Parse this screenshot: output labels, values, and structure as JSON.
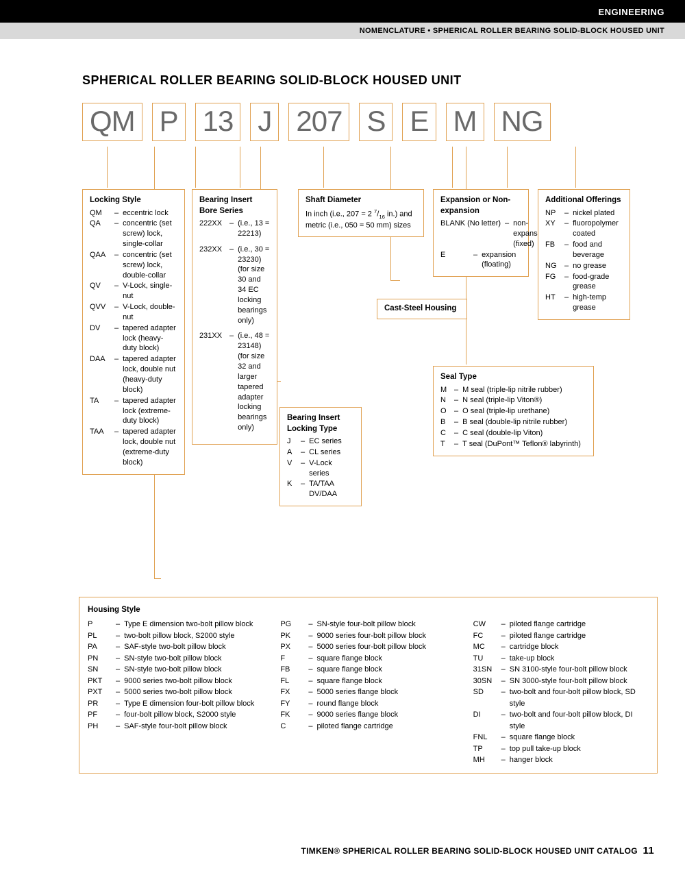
{
  "header": {
    "category": "ENGINEERING",
    "breadcrumb": "NOMENCLATURE • SPHERICAL ROLLER BEARING SOLID-BLOCK HOUSED UNIT"
  },
  "title": "SPHERICAL ROLLER BEARING SOLID-BLOCK HOUSED UNIT",
  "code_parts": [
    "QM",
    "P",
    "13",
    "J",
    "207",
    "S",
    "E",
    "M",
    "NG"
  ],
  "colors": {
    "accent": "#e0a050",
    "code_text": "#6a6a6a"
  },
  "boxes": {
    "locking_style": {
      "heading": "Locking Style",
      "items": [
        {
          "c": "QM",
          "d": "eccentric lock"
        },
        {
          "c": "QA",
          "d": "concentric (set screw) lock, single-collar"
        },
        {
          "c": "QAA",
          "d": "concentric (set screw) lock, double-collar"
        },
        {
          "c": "QV",
          "d": "V-Lock, single-nut"
        },
        {
          "c": "QVV",
          "d": "V-Lock, double-nut"
        },
        {
          "c": "DV",
          "d": "tapered adapter lock (heavy-duty block)"
        },
        {
          "c": "DAA",
          "d": "tapered adapter lock, double nut (heavy-duty block)"
        },
        {
          "c": "TA",
          "d": "tapered adapter lock (extreme-duty block)"
        },
        {
          "c": "TAA",
          "d": "tapered adapter lock, double nut (extreme-duty block)"
        }
      ]
    },
    "bore_series": {
      "heading": "Bearing Insert Bore Series",
      "items": [
        {
          "c": "222XX",
          "d": "(i.e., 13 = 22213)"
        },
        {
          "c": "232XX",
          "d": "(i.e., 30 = 23230) (for size 30 and 34 EC locking bearings only)"
        },
        {
          "c": "231XX",
          "d": "(i.e., 48 = 23148) (for size 32 and larger tapered adapter locking bearings only)"
        }
      ]
    },
    "locking_type": {
      "heading": "Bearing Insert Locking Type",
      "items": [
        {
          "c": "J",
          "d": "EC series"
        },
        {
          "c": "A",
          "d": "CL series"
        },
        {
          "c": "V",
          "d": "V-Lock series"
        },
        {
          "c": "K",
          "d": "TA/TAA DV/DAA"
        }
      ]
    },
    "shaft_diameter": {
      "heading": "Shaft Diameter",
      "text": "In inch (i.e., 207 = 2 7/16 in.) and metric (i.e., 050 = 50 mm) sizes"
    },
    "cast_steel": {
      "heading": "Cast-Steel Housing"
    },
    "expansion": {
      "heading": "Expansion or Non-expansion",
      "items": [
        {
          "c": "BLANK (No letter)",
          "d": "non-expansion (fixed)"
        },
        {
          "c": "E",
          "d": "expansion (floating)"
        }
      ]
    },
    "seal_type": {
      "heading": "Seal Type",
      "items": [
        {
          "c": "M",
          "d": "M seal (triple-lip nitrile rubber)"
        },
        {
          "c": "N",
          "d": "N seal (triple-lip Viton®)"
        },
        {
          "c": "O",
          "d": "O seal (triple-lip urethane)"
        },
        {
          "c": "B",
          "d": "B seal (double-lip nitrile rubber)"
        },
        {
          "c": "C",
          "d": "C seal (double-lip Viton)"
        },
        {
          "c": "T",
          "d": "T seal (DuPont™ Teflon® labyrinth)"
        }
      ]
    },
    "additional": {
      "heading": "Additional Offerings",
      "items": [
        {
          "c": "NP",
          "d": "nickel plated"
        },
        {
          "c": "XY",
          "d": "fluoropolymer coated"
        },
        {
          "c": "FB",
          "d": "food and beverage"
        },
        {
          "c": "NG",
          "d": "no grease"
        },
        {
          "c": "FG",
          "d": "food-grade grease"
        },
        {
          "c": "HT",
          "d": "high-temp grease"
        }
      ]
    },
    "housing_style": {
      "heading": "Housing Style",
      "col1": [
        {
          "c": "P",
          "d": "Type E dimension two-bolt pillow block"
        },
        {
          "c": "PL",
          "d": "two-bolt pillow block, S2000 style"
        },
        {
          "c": "PA",
          "d": "SAF-style two-bolt pillow block"
        },
        {
          "c": "PN",
          "d": "SN-style two-bolt pillow block"
        },
        {
          "c": "SN",
          "d": "SN-style two-bolt pillow block"
        },
        {
          "c": "PKT",
          "d": "9000 series two-bolt pillow block"
        },
        {
          "c": "PXT",
          "d": "5000 series two-bolt pillow block"
        },
        {
          "c": "PR",
          "d": "Type E dimension four-bolt pillow block"
        },
        {
          "c": "PF",
          "d": "four-bolt pillow block, S2000 style"
        },
        {
          "c": "PH",
          "d": "SAF-style four-bolt pillow block"
        }
      ],
      "col2": [
        {
          "c": "PG",
          "d": "SN-style four-bolt pillow block"
        },
        {
          "c": "PK",
          "d": "9000 series four-bolt pillow block"
        },
        {
          "c": "PX",
          "d": "5000 series four-bolt pillow block"
        },
        {
          "c": "F",
          "d": "square flange block"
        },
        {
          "c": "FB",
          "d": "square flange block"
        },
        {
          "c": "FL",
          "d": "square flange block"
        },
        {
          "c": "FX",
          "d": "5000 series flange block"
        },
        {
          "c": "FY",
          "d": "round flange block"
        },
        {
          "c": "FK",
          "d": "9000 series flange block"
        },
        {
          "c": "C",
          "d": "piloted flange cartridge"
        }
      ],
      "col3": [
        {
          "c": "CW",
          "d": "piloted flange cartridge"
        },
        {
          "c": "FC",
          "d": "piloted flange cartridge"
        },
        {
          "c": "MC",
          "d": "cartridge block"
        },
        {
          "c": "TU",
          "d": "take-up block"
        },
        {
          "c": "31SN",
          "d": "SN 3100-style four-bolt pillow block"
        },
        {
          "c": "30SN",
          "d": "SN 3000-style four-bolt pillow block"
        },
        {
          "c": "SD",
          "d": "two-bolt and four-bolt pillow block, SD style"
        },
        {
          "c": "DI",
          "d": "two-bolt and four-bolt pillow block, DI style"
        },
        {
          "c": "FNL",
          "d": "square flange block"
        },
        {
          "c": "TP",
          "d": "top pull take-up block"
        },
        {
          "c": "MH",
          "d": "hanger block"
        }
      ]
    }
  },
  "footer": {
    "text": "TIMKEN® SPHERICAL ROLLER BEARING SOLID-BLOCK HOUSED UNIT CATALOG",
    "page": "11"
  }
}
